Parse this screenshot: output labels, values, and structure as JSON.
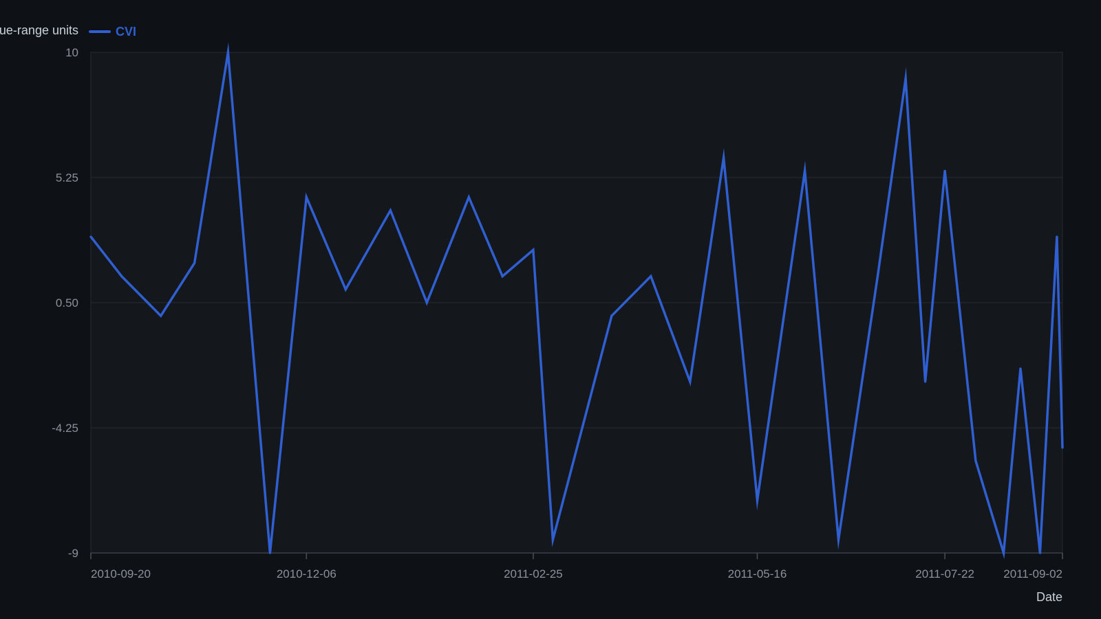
{
  "chart_data": {
    "type": "line",
    "title": "",
    "xlabel": "Date",
    "ylabel": "Value-range units",
    "ylim": [
      -9,
      10
    ],
    "yticks": [
      "10",
      "5.25",
      "0.50",
      "-4.25",
      "-9"
    ],
    "ytick_values": [
      10,
      5.25,
      0.5,
      -4.25,
      -9
    ],
    "xlim": [
      "2010-09-20",
      "2011-09-02"
    ],
    "xticks": [
      "2010-09-20",
      "2010-12-06",
      "2011-02-25",
      "2011-05-16",
      "2011-07-22",
      "2011-09-02"
    ],
    "grid": true,
    "legend_position": "top-left",
    "series": [
      {
        "name": "CVI",
        "color": "#2f5fd0",
        "points": [
          {
            "x": "2010-09-20",
            "y": 3.0
          },
          {
            "x": "2010-10-01",
            "y": 1.5
          },
          {
            "x": "2010-10-15",
            "y": 0.0
          },
          {
            "x": "2010-10-27",
            "y": 2.0
          },
          {
            "x": "2010-11-08",
            "y": 10.0
          },
          {
            "x": "2010-11-23",
            "y": -9.0
          },
          {
            "x": "2010-12-06",
            "y": 4.5
          },
          {
            "x": "2010-12-20",
            "y": 1.0
          },
          {
            "x": "2011-01-05",
            "y": 4.0
          },
          {
            "x": "2011-01-18",
            "y": 0.5
          },
          {
            "x": "2011-02-02",
            "y": 4.5
          },
          {
            "x": "2011-02-14",
            "y": 1.5
          },
          {
            "x": "2011-02-25",
            "y": 2.5
          },
          {
            "x": "2011-03-04",
            "y": -8.5
          },
          {
            "x": "2011-03-25",
            "y": 0.0
          },
          {
            "x": "2011-04-08",
            "y": 1.5
          },
          {
            "x": "2011-04-22",
            "y": -2.5
          },
          {
            "x": "2011-05-04",
            "y": 6.0
          },
          {
            "x": "2011-05-16",
            "y": -7.0
          },
          {
            "x": "2011-06-02",
            "y": 5.5
          },
          {
            "x": "2011-06-14",
            "y": -8.5
          },
          {
            "x": "2011-06-28",
            "y": 1.5
          },
          {
            "x": "2011-07-08",
            "y": 9.0
          },
          {
            "x": "2011-07-15",
            "y": -2.5
          },
          {
            "x": "2011-07-22",
            "y": 5.5
          },
          {
            "x": "2011-08-02",
            "y": -5.5
          },
          {
            "x": "2011-08-12",
            "y": -9.0
          },
          {
            "x": "2011-08-18",
            "y": -2.0
          },
          {
            "x": "2011-08-25",
            "y": -9.0
          },
          {
            "x": "2011-08-31",
            "y": 3.0
          },
          {
            "x": "2011-09-02",
            "y": -5.0
          }
        ]
      }
    ]
  }
}
